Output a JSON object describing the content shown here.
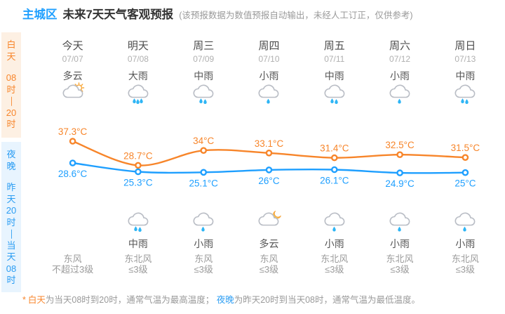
{
  "header": {
    "region": "主城区",
    "title": "未来7天天气客观预报",
    "note": "(该预报数据为数值预报自动输出，未经人工订正，仅供参考)"
  },
  "sidebar": {
    "day": {
      "label": "白天",
      "time": "08时—20时"
    },
    "night": {
      "label": "夜晚",
      "time": "昨天20时—当天08时"
    }
  },
  "days": [
    {
      "name": "今天",
      "date": "07/07",
      "day_weather": "多云",
      "day_icon": "cloudy-sun",
      "night_weather": "",
      "night_icon": "",
      "wind_direction": "东风",
      "wind_level": "不超过3级"
    },
    {
      "name": "明天",
      "date": "07/08",
      "day_weather": "大雨",
      "day_icon": "rain-heavy",
      "night_weather": "中雨",
      "night_icon": "rain-medium",
      "wind_direction": "东北风",
      "wind_level": "≤3级"
    },
    {
      "name": "周三",
      "date": "07/09",
      "day_weather": "中雨",
      "day_icon": "rain-medium",
      "night_weather": "小雨",
      "night_icon": "rain-light",
      "wind_direction": "东风",
      "wind_level": "≤3级"
    },
    {
      "name": "周四",
      "date": "07/10",
      "day_weather": "小雨",
      "day_icon": "rain-light",
      "night_weather": "多云",
      "night_icon": "cloudy-moon",
      "wind_direction": "东风",
      "wind_level": "≤3级"
    },
    {
      "name": "周五",
      "date": "07/11",
      "day_weather": "中雨",
      "day_icon": "rain-medium",
      "night_weather": "小雨",
      "night_icon": "rain-light",
      "wind_direction": "东北风",
      "wind_level": "≤3级"
    },
    {
      "name": "周六",
      "date": "07/12",
      "day_weather": "小雨",
      "day_icon": "rain-light",
      "night_weather": "小雨",
      "night_icon": "rain-light",
      "wind_direction": "东北风",
      "wind_level": "≤3级"
    },
    {
      "name": "周日",
      "date": "07/13",
      "day_weather": "中雨",
      "day_icon": "rain-medium",
      "night_weather": "小雨",
      "night_icon": "rain-light",
      "wind_direction": "东北风",
      "wind_level": "≤3级"
    }
  ],
  "chart_data": {
    "type": "line",
    "categories": [
      "07/07",
      "07/08",
      "07/09",
      "07/10",
      "07/11",
      "07/12",
      "07/13"
    ],
    "series": [
      {
        "name": "白天最高气温",
        "color": "#f7852a",
        "values": [
          37.3,
          28.7,
          34,
          33.1,
          31.4,
          32.5,
          31.5
        ],
        "labels": [
          "37.3°C",
          "28.7°C",
          "34°C",
          "33.1°C",
          "31.4°C",
          "32.5°C",
          "31.5°C"
        ]
      },
      {
        "name": "夜晚最低气温",
        "color": "#1e9fff",
        "values": [
          28.6,
          25.3,
          25.1,
          26,
          26.1,
          24.9,
          25
        ],
        "labels": [
          "28.6°C",
          "25.3°C",
          "25.1°C",
          "26°C",
          "26.1°C",
          "24.9°C",
          "25°C"
        ]
      }
    ],
    "unit": "°C",
    "grid": false,
    "legend": "none",
    "point_labels": "above-high-below-low"
  },
  "footnote": {
    "star": "*",
    "day_term": "白天",
    "day_text": "为当天08时到20时，通常气温为最高温度；",
    "night_term": "夜晚",
    "night_text": "为昨天20时到当天08时，通常气温为最低温度。"
  },
  "colors": {
    "accent_blue": "#1e9fff",
    "accent_orange": "#f7852a",
    "sidebar_day_bg": "#fdf0e3",
    "sidebar_night_bg": "#e8f4fe",
    "cloud_stroke": "#b9bdc5",
    "rain_drop": "#2eb5f5",
    "sun": "#f9a93c",
    "moon": "#fbc34a"
  }
}
